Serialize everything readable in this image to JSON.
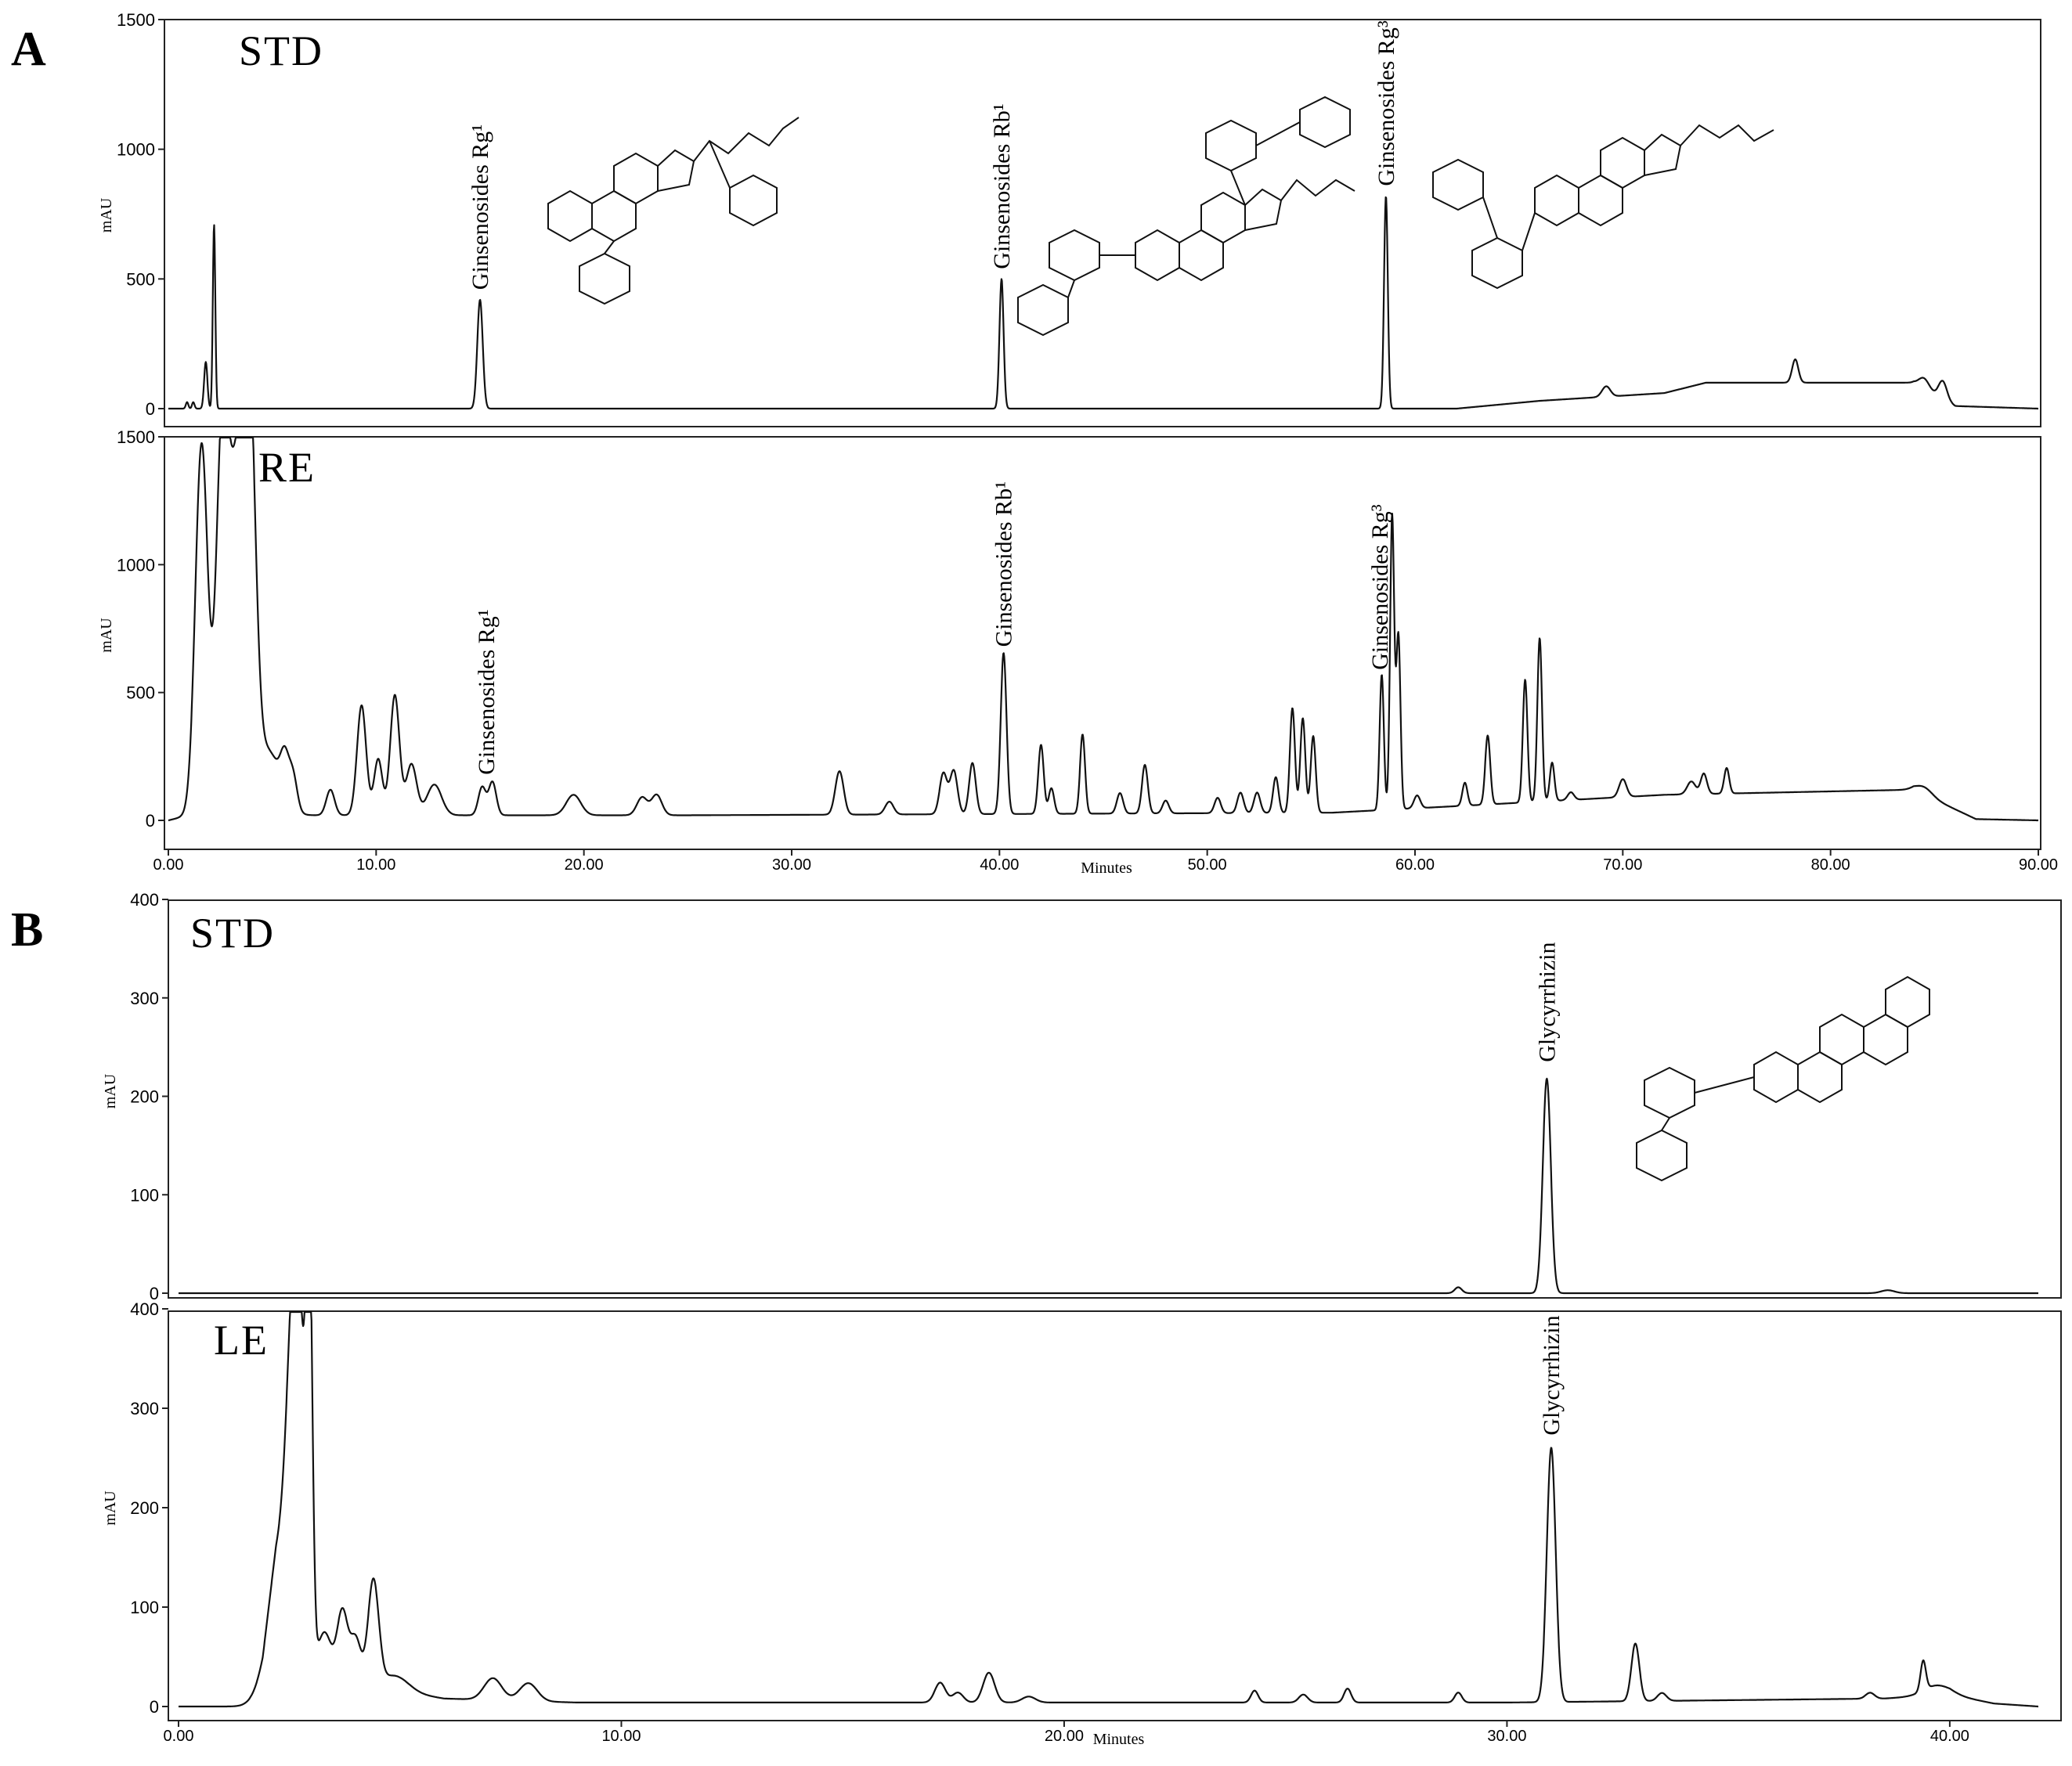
{
  "panels": {
    "A": "A",
    "B": "B"
  },
  "chart_data": [
    {
      "type": "line",
      "panel": "A",
      "trace_label": "STD",
      "ylabel": "mAU",
      "xlabel": "",
      "xlim": [
        0,
        90
      ],
      "ylim": [
        0,
        1500
      ],
      "y_ticks": [
        0,
        500,
        1000,
        1500
      ],
      "x_ticks": [],
      "peaks": [
        {
          "x": 1.8,
          "y": 180,
          "w": 0.08
        },
        {
          "x": 2.2,
          "y": 710,
          "w": 0.06
        },
        {
          "x": 0.9,
          "y": 25,
          "w": 0.06
        },
        {
          "x": 1.2,
          "y": 25,
          "w": 0.06
        },
        {
          "x": 15.0,
          "y": 420,
          "w": 0.13
        },
        {
          "x": 40.1,
          "y": 500,
          "w": 0.1
        },
        {
          "x": 58.6,
          "y": 820,
          "w": 0.09
        },
        {
          "x": 69.2,
          "y": 40,
          "w": 0.2
        },
        {
          "x": 78.3,
          "y": 90,
          "w": 0.15
        },
        {
          "x": 84.5,
          "y": 40,
          "w": 0.25
        },
        {
          "x": 85.4,
          "y": 70,
          "w": 0.2
        }
      ],
      "baseline": [
        [
          0,
          0
        ],
        [
          62,
          0
        ],
        [
          66,
          30
        ],
        [
          72,
          60
        ],
        [
          74,
          100
        ],
        [
          84,
          100
        ],
        [
          86,
          10
        ],
        [
          90,
          0
        ]
      ],
      "annotations": [
        {
          "text": "Ginsenosides Rg¹",
          "x": 15.0,
          "y": 440
        },
        {
          "text": "Ginsenosides Rb¹",
          "x": 40.1,
          "y": 520
        },
        {
          "text": "Ginsenosides Rg³",
          "x": 58.6,
          "y": 840
        }
      ]
    },
    {
      "type": "line",
      "panel": "A",
      "trace_label": "RE",
      "ylabel": "mAU",
      "xlabel": "Minutes",
      "xlim": [
        0,
        90
      ],
      "ylim": [
        0,
        1500
      ],
      "y_ticks": [
        0,
        500,
        1000,
        1500
      ],
      "x_ticks": [
        "0.00",
        "10.00",
        "20.00",
        "30.00",
        "40.00",
        "50.00",
        "60.00",
        "70.00",
        "80.00",
        "90.00"
      ],
      "peaks": [
        {
          "x": 1.6,
          "y": 1450,
          "w": 0.3
        },
        {
          "x": 2.6,
          "y": 1500,
          "w": 0.3
        },
        {
          "x": 3.3,
          "y": 1200,
          "w": 0.35
        },
        {
          "x": 3.9,
          "y": 1500,
          "w": 0.3
        },
        {
          "x": 4.8,
          "y": 250,
          "w": 0.6
        },
        {
          "x": 5.6,
          "y": 150,
          "w": 0.2
        },
        {
          "x": 6.0,
          "y": 130,
          "w": 0.2
        },
        {
          "x": 7.8,
          "y": 100,
          "w": 0.2
        },
        {
          "x": 9.3,
          "y": 430,
          "w": 0.22
        },
        {
          "x": 10.1,
          "y": 220,
          "w": 0.2
        },
        {
          "x": 10.9,
          "y": 470,
          "w": 0.22
        },
        {
          "x": 11.7,
          "y": 200,
          "w": 0.25
        },
        {
          "x": 12.8,
          "y": 120,
          "w": 0.35
        },
        {
          "x": 15.1,
          "y": 110,
          "w": 0.18
        },
        {
          "x": 15.6,
          "y": 130,
          "w": 0.18
        },
        {
          "x": 19.5,
          "y": 80,
          "w": 0.35
        },
        {
          "x": 22.8,
          "y": 70,
          "w": 0.25
        },
        {
          "x": 23.5,
          "y": 80,
          "w": 0.25
        },
        {
          "x": 32.3,
          "y": 170,
          "w": 0.2
        },
        {
          "x": 34.7,
          "y": 50,
          "w": 0.2
        },
        {
          "x": 37.3,
          "y": 160,
          "w": 0.18
        },
        {
          "x": 37.8,
          "y": 170,
          "w": 0.18
        },
        {
          "x": 38.7,
          "y": 200,
          "w": 0.16
        },
        {
          "x": 40.2,
          "y": 630,
          "w": 0.14
        },
        {
          "x": 42.0,
          "y": 270,
          "w": 0.13
        },
        {
          "x": 42.5,
          "y": 100,
          "w": 0.13
        },
        {
          "x": 44.0,
          "y": 310,
          "w": 0.12
        },
        {
          "x": 45.8,
          "y": 80,
          "w": 0.15
        },
        {
          "x": 47.0,
          "y": 190,
          "w": 0.14
        },
        {
          "x": 48.0,
          "y": 50,
          "w": 0.15
        },
        {
          "x": 50.5,
          "y": 60,
          "w": 0.15
        },
        {
          "x": 51.6,
          "y": 80,
          "w": 0.15
        },
        {
          "x": 52.4,
          "y": 80,
          "w": 0.15
        },
        {
          "x": 53.3,
          "y": 140,
          "w": 0.13
        },
        {
          "x": 54.1,
          "y": 410,
          "w": 0.12
        },
        {
          "x": 54.6,
          "y": 370,
          "w": 0.12
        },
        {
          "x": 55.1,
          "y": 300,
          "w": 0.12
        },
        {
          "x": 58.4,
          "y": 530,
          "w": 0.1
        },
        {
          "x": 58.9,
          "y": 1150,
          "w": 0.1
        },
        {
          "x": 59.2,
          "y": 680,
          "w": 0.1
        },
        {
          "x": 60.1,
          "y": 50,
          "w": 0.15
        },
        {
          "x": 62.4,
          "y": 90,
          "w": 0.12
        },
        {
          "x": 63.5,
          "y": 270,
          "w": 0.12
        },
        {
          "x": 65.3,
          "y": 480,
          "w": 0.11
        },
        {
          "x": 66.0,
          "y": 640,
          "w": 0.11
        },
        {
          "x": 66.6,
          "y": 150,
          "w": 0.11
        },
        {
          "x": 67.5,
          "y": 30,
          "w": 0.15
        },
        {
          "x": 70.0,
          "y": 70,
          "w": 0.18
        },
        {
          "x": 73.3,
          "y": 50,
          "w": 0.2
        },
        {
          "x": 73.9,
          "y": 80,
          "w": 0.15
        },
        {
          "x": 75.0,
          "y": 100,
          "w": 0.12
        },
        {
          "x": 84.5,
          "y": 30,
          "w": 0.4
        }
      ],
      "baseline": [
        [
          0,
          0
        ],
        [
          1,
          20
        ],
        [
          14,
          20
        ],
        [
          25,
          20
        ],
        [
          56,
          30
        ],
        [
          63,
          60
        ],
        [
          72,
          100
        ],
        [
          84,
          120
        ],
        [
          87,
          5
        ],
        [
          90,
          0
        ]
      ],
      "annotations": [
        {
          "text": "Ginsenosides Rg¹",
          "x": 15.3,
          "y": 160
        },
        {
          "text": "Ginsenosides Rb¹",
          "x": 40.2,
          "y": 660
        },
        {
          "text": "Ginsenosides Rg³",
          "x": 58.3,
          "y": 570
        }
      ]
    },
    {
      "type": "line",
      "panel": "B",
      "trace_label": "STD",
      "ylabel": "mAU",
      "xlabel": "",
      "xlim": [
        0,
        42
      ],
      "ylim": [
        0,
        450
      ],
      "y_ticks": [
        0,
        100,
        200,
        300,
        400
      ],
      "x_ticks": [],
      "peaks": [
        {
          "x": 28.9,
          "y": 6,
          "w": 0.08
        },
        {
          "x": 30.9,
          "y": 218,
          "w": 0.09
        },
        {
          "x": 38.6,
          "y": 3,
          "w": 0.15
        }
      ],
      "baseline": [
        [
          0,
          0
        ],
        [
          42,
          0
        ]
      ],
      "annotations": [
        {
          "text": "Glycyrrhizin",
          "x": 30.9,
          "y": 230
        }
      ]
    },
    {
      "type": "line",
      "panel": "B",
      "trace_label": "LE",
      "ylabel": "mAU",
      "xlabel": "Minutes",
      "xlim": [
        0,
        42
      ],
      "ylim": [
        0,
        450
      ],
      "y_ticks": [
        0,
        100,
        200,
        300,
        400
      ],
      "x_ticks": [
        "0.00",
        "10.00",
        "20.00",
        "30.00",
        "40.00"
      ],
      "peaks": [
        {
          "x": 2.3,
          "y": 120,
          "w": 0.3
        },
        {
          "x": 2.6,
          "y": 280,
          "w": 0.15
        },
        {
          "x": 2.75,
          "y": 180,
          "w": 0.12
        },
        {
          "x": 2.95,
          "y": 420,
          "w": 0.07
        },
        {
          "x": 3.3,
          "y": 45,
          "w": 0.15
        },
        {
          "x": 3.7,
          "y": 70,
          "w": 0.12
        },
        {
          "x": 4.0,
          "y": 45,
          "w": 0.12
        },
        {
          "x": 4.4,
          "y": 105,
          "w": 0.12
        },
        {
          "x": 4.9,
          "y": 15,
          "w": 0.3
        },
        {
          "x": 7.1,
          "y": 22,
          "w": 0.2
        },
        {
          "x": 7.9,
          "y": 18,
          "w": 0.2
        },
        {
          "x": 17.2,
          "y": 20,
          "w": 0.12
        },
        {
          "x": 17.6,
          "y": 10,
          "w": 0.12
        },
        {
          "x": 18.3,
          "y": 30,
          "w": 0.13
        },
        {
          "x": 19.2,
          "y": 6,
          "w": 0.15
        },
        {
          "x": 24.3,
          "y": 12,
          "w": 0.08
        },
        {
          "x": 25.4,
          "y": 8,
          "w": 0.1
        },
        {
          "x": 26.4,
          "y": 14,
          "w": 0.08
        },
        {
          "x": 28.9,
          "y": 10,
          "w": 0.08
        },
        {
          "x": 31.0,
          "y": 256,
          "w": 0.1
        },
        {
          "x": 32.9,
          "y": 58,
          "w": 0.09
        },
        {
          "x": 33.5,
          "y": 8,
          "w": 0.1
        },
        {
          "x": 38.2,
          "y": 6,
          "w": 0.1
        },
        {
          "x": 39.4,
          "y": 30,
          "w": 0.06
        },
        {
          "x": 39.7,
          "y": 10,
          "w": 0.3
        }
      ],
      "baseline": [
        [
          0,
          0
        ],
        [
          1.9,
          0
        ],
        [
          2.2,
          40
        ],
        [
          3.2,
          30
        ],
        [
          5,
          15
        ],
        [
          6,
          8
        ],
        [
          9,
          4
        ],
        [
          20,
          4
        ],
        [
          30,
          4
        ],
        [
          38.5,
          8
        ],
        [
          40,
          12
        ],
        [
          41,
          3
        ],
        [
          42,
          0
        ]
      ],
      "annotations": [
        {
          "text": "Glycyrrhizin",
          "x": 31.0,
          "y": 268
        }
      ]
    }
  ]
}
